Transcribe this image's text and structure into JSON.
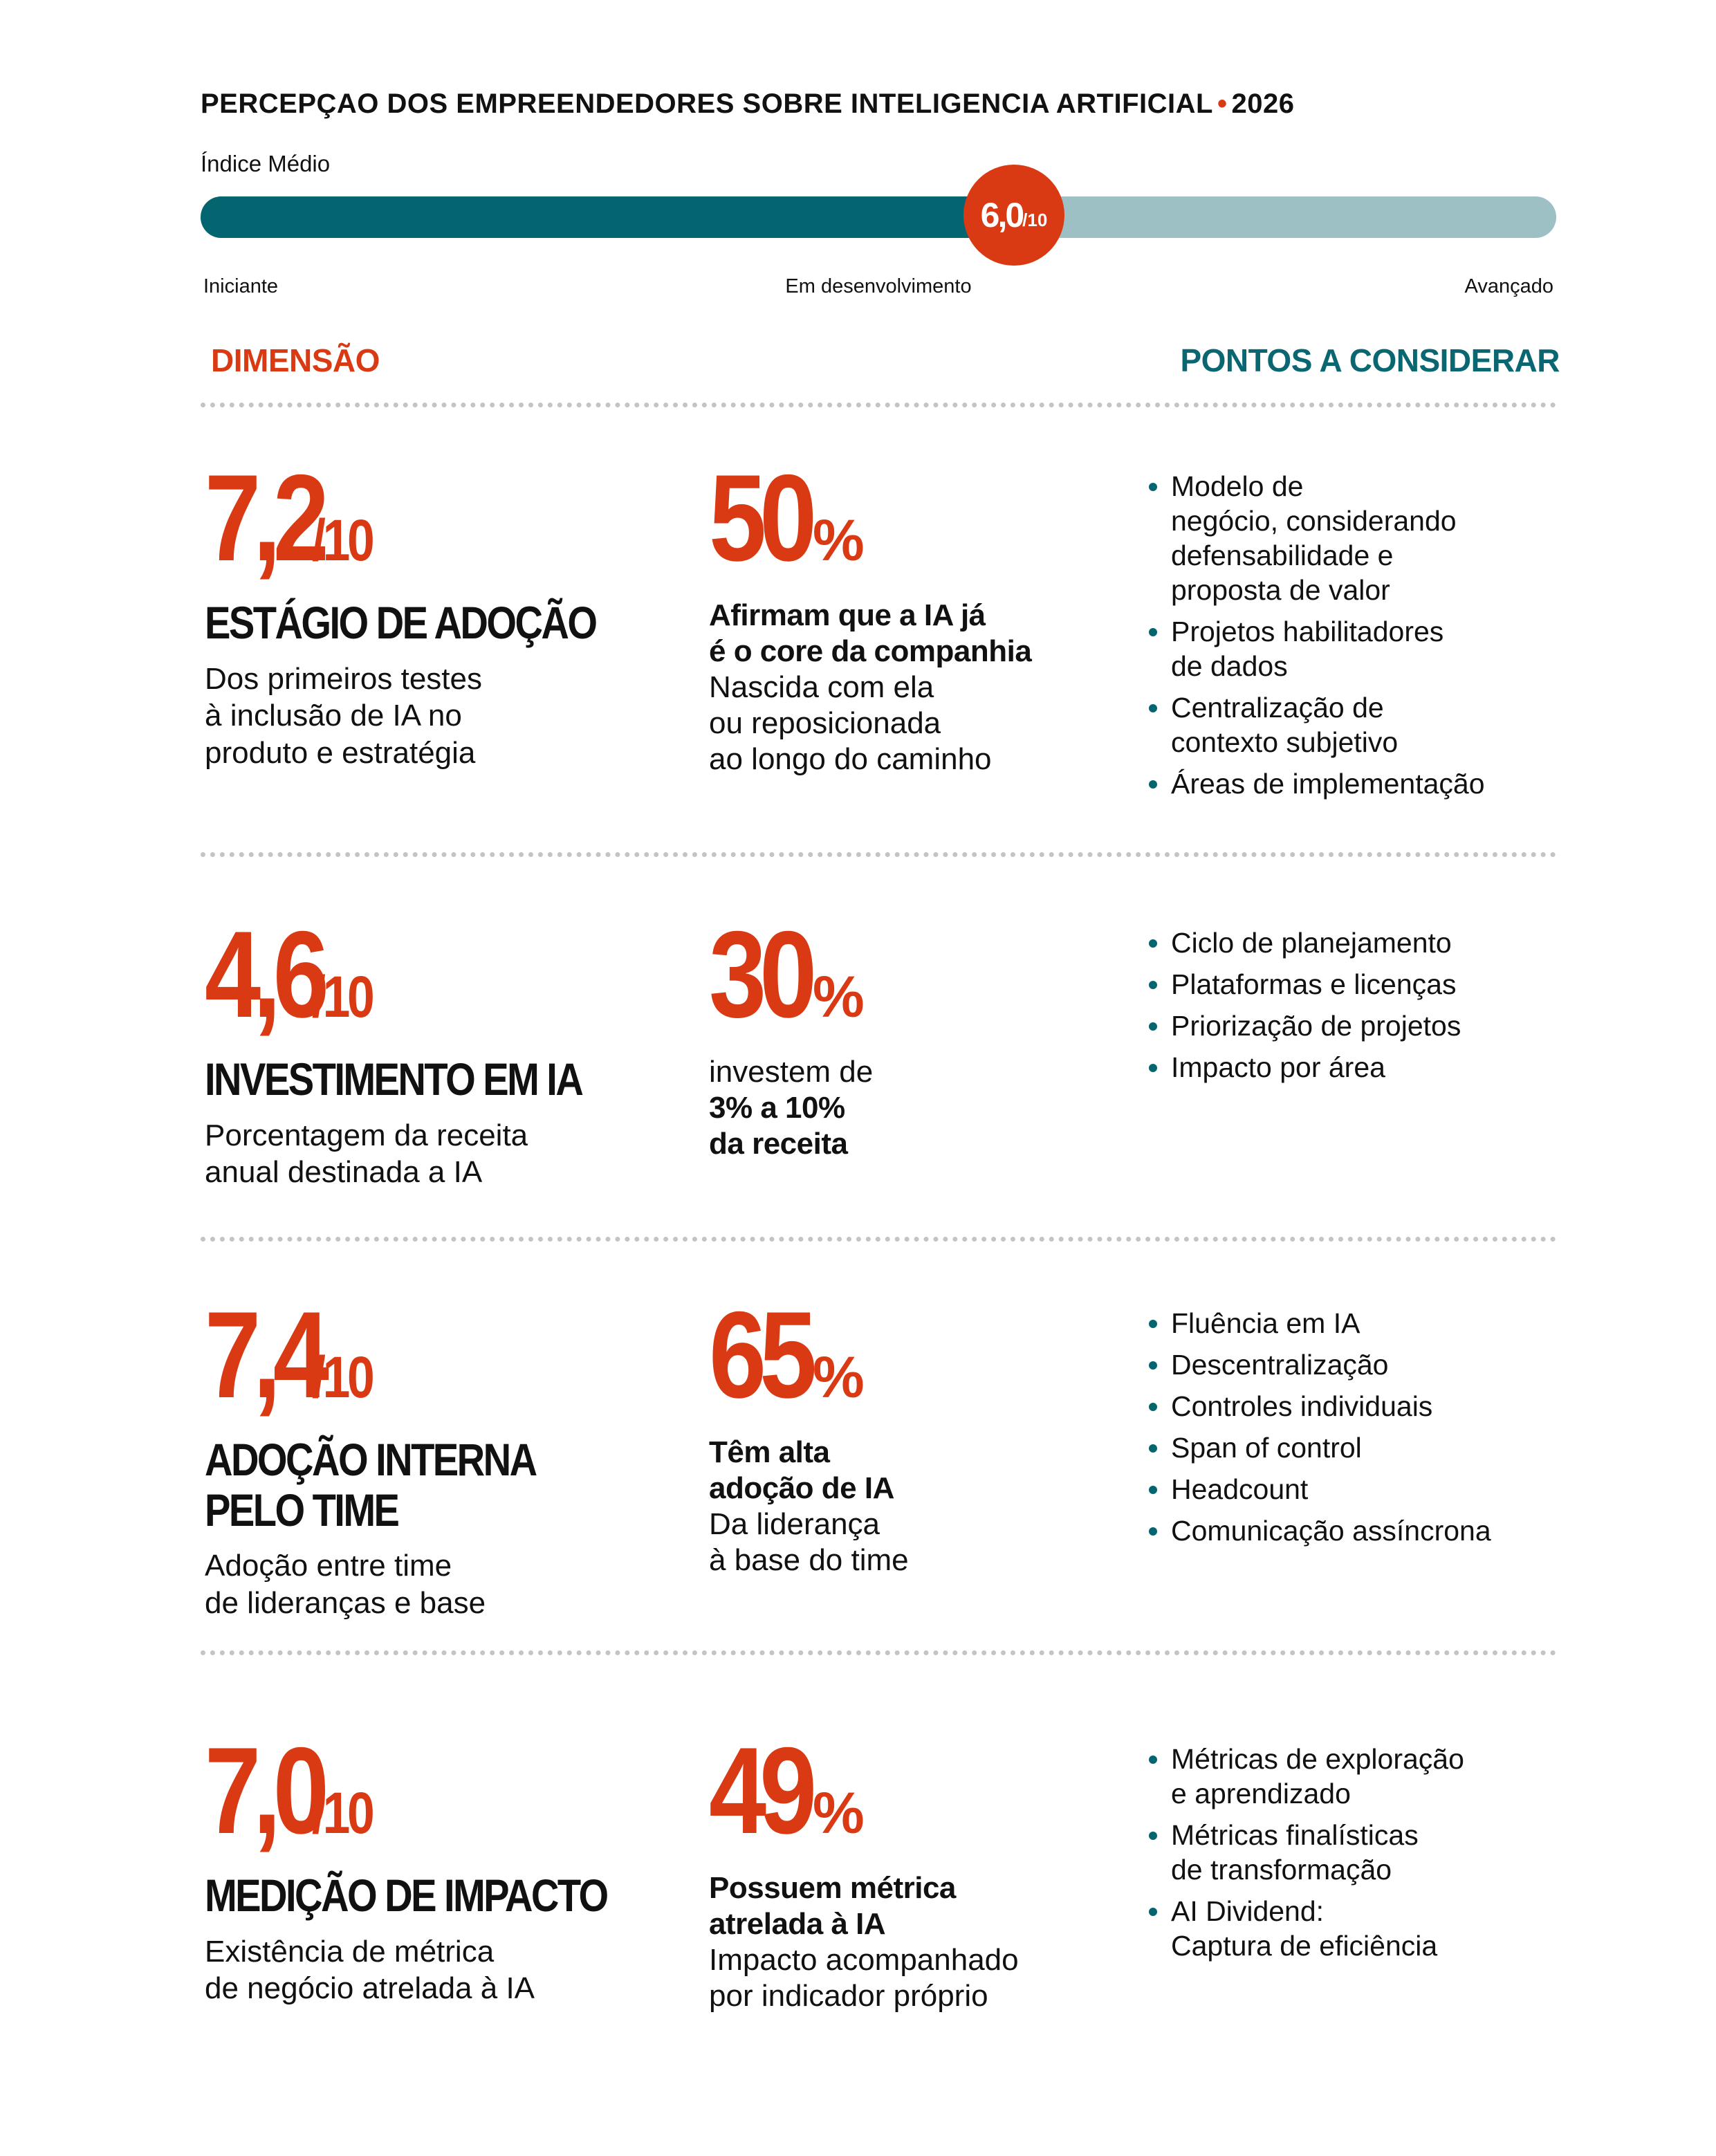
{
  "header": {
    "title": "PERCEPÇAO DOS EMPREENDEDORES SOBRE INTELIGENCIA ARTIFICIAL",
    "separator": "•",
    "year": "2026"
  },
  "index": {
    "label": "Índice Médio",
    "value": 6,
    "value_label": "6,0",
    "scale": {
      "value": 10,
      "label": "/10"
    },
    "levels": [
      "Iniciante",
      "Em desenvolvimento",
      "Avançado"
    ]
  },
  "columns": {
    "left": "DIMENSÃO",
    "right": "PONTOS A CONSIDERAR"
  },
  "rows": [
    {
      "score": {
        "value": 7.2,
        "label": "7,2"
      },
      "score_suffix": "/10",
      "name": "ESTÁGIO DE ADOÇÃO",
      "description": "Dos primeiros testes\nà inclusão de IA no\nproduto e estratégia",
      "stat": {
        "value": 50,
        "unit": "%"
      },
      "captions": [
        {
          "text": "Afirmam que a IA já\né o core da companhia",
          "bold": true
        },
        {
          "text": "Nascida com ela\nou reposicionada\nao longo do caminho",
          "bold": false
        }
      ],
      "points": [
        "Modelo de\nnegócio, considerando\ndefensabilidade e\nproposta de valor",
        "Projetos habilitadores\nde dados",
        "Centralização de\ncontexto subjetivo",
        "Áreas de implementação"
      ]
    },
    {
      "score": {
        "value": 4.6,
        "label": "4,6"
      },
      "score_suffix": "/10",
      "name": "INVESTIMENTO EM IA",
      "description": "Porcentagem da receita\nanual destinada a IA",
      "stat": {
        "value": 30,
        "unit": "%"
      },
      "captions": [
        {
          "text": "investem de",
          "bold": false
        },
        {
          "text": "3% a 10%\nda receita",
          "bold": true
        }
      ],
      "points": [
        "Ciclo de planejamento",
        "Plataformas e licenças",
        "Priorização de projetos",
        "Impacto por área"
      ]
    },
    {
      "score": {
        "value": 7.4,
        "label": "7,4"
      },
      "score_suffix": "/10",
      "name": "ADOÇÃO INTERNA\nPELO TIME",
      "description": "Adoção entre time\nde lideranças e base",
      "stat": {
        "value": 65,
        "unit": "%"
      },
      "captions": [
        {
          "text": "Têm alta\nadoção de IA",
          "bold": true
        },
        {
          "text": "Da liderança\nà base do time",
          "bold": false
        }
      ],
      "points": [
        "Fluência em IA",
        "Descentralização",
        "Controles individuais",
        "Span of control",
        "Headcount",
        "Comunicação assíncrona"
      ]
    },
    {
      "score": {
        "value": 7.0,
        "label": "7,0"
      },
      "score_suffix": "/10",
      "name": "MEDIÇÃO DE IMPACTO",
      "description": "Existência de métrica\nde negócio atrelada à IA",
      "stat": {
        "value": 49,
        "unit": "%"
      },
      "captions": [
        {
          "text": "Possuem métrica\natrelada à IA",
          "bold": true
        },
        {
          "text": "Impacto acompanhado\npor indicador próprio",
          "bold": false
        }
      ],
      "points": [
        "Métricas de exploração\ne aprendizado",
        "Métricas finalísticas\nde transformação",
        "AI Dividend:\nCaptura de eficiência"
      ]
    }
  ]
}
